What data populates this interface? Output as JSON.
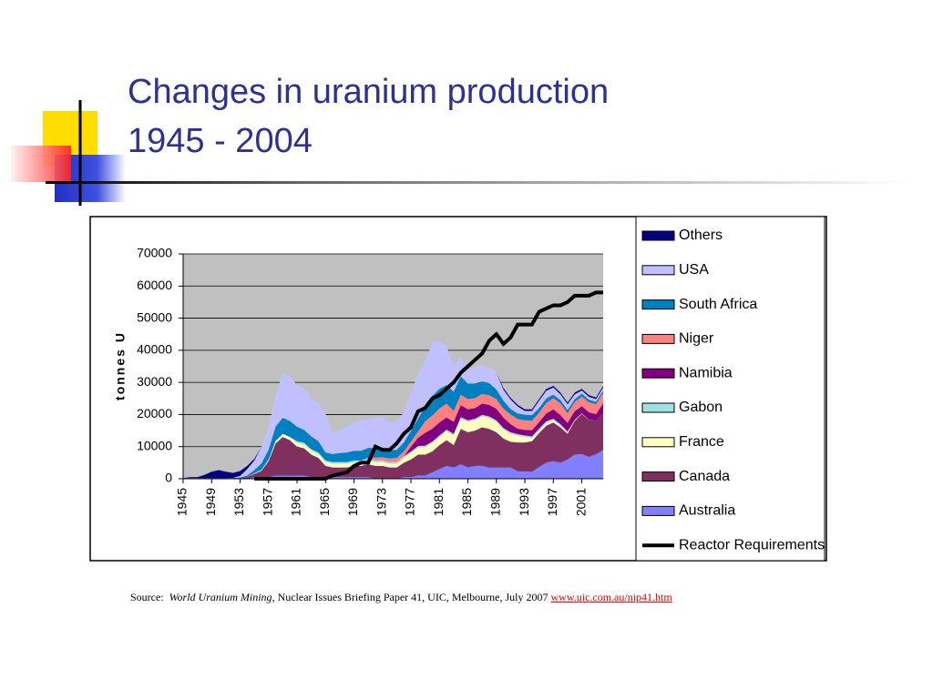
{
  "title": "Changes in uranium production",
  "subtitle": "1945 - 2004",
  "source": {
    "prefix": "Source:",
    "title": "World Uranium Mining",
    "text": ", Nuclear Issues Briefing Paper 41, UIC, Melbourne, July 2007",
    "link": "www.uic.com.au/nip41.htm"
  },
  "chart_data": {
    "type": "stacked_area",
    "y_label": "tonnes U",
    "ylim": [
      0,
      70000
    ],
    "yticks": [
      0,
      10000,
      20000,
      30000,
      40000,
      50000,
      60000,
      70000
    ],
    "grid": true,
    "categories": [
      "1945",
      null,
      null,
      null,
      "1949",
      null,
      null,
      null,
      "1953",
      null,
      null,
      null,
      "1957",
      null,
      null,
      null,
      "1961",
      null,
      null,
      null,
      "1965",
      null,
      null,
      null,
      "1969",
      null,
      null,
      null,
      "1973",
      null,
      null,
      null,
      "1977",
      null,
      null,
      null,
      "1981",
      null,
      null,
      null,
      "1985",
      null,
      null,
      null,
      "1989",
      null,
      null,
      null,
      "1993",
      null,
      null,
      null,
      "1997",
      null,
      null,
      null,
      "2001",
      null,
      null,
      null
    ],
    "series": [
      {
        "name": "Australia",
        "color": "#8080ff",
        "values": [
          0,
          0,
          0,
          0,
          0,
          0,
          0,
          0,
          0,
          0,
          500,
          500,
          500,
          1000,
          1000,
          1000,
          1000,
          1000,
          500,
          500,
          500,
          500,
          500,
          500,
          500,
          500,
          500,
          0,
          0,
          0,
          0,
          500,
          500,
          1000,
          1000,
          2000,
          3000,
          4000,
          3500,
          4500,
          3500,
          4000,
          4000,
          3500,
          3500,
          3500,
          3500,
          2300,
          2300,
          2200,
          3700,
          5000,
          5500,
          5000,
          6000,
          7500,
          7700,
          6800,
          7600,
          9000
        ]
      },
      {
        "name": "Canada",
        "color": "#803060",
        "values": [
          200,
          200,
          200,
          200,
          200,
          200,
          200,
          200,
          200,
          500,
          1000,
          2000,
          5000,
          10000,
          12000,
          11000,
          9000,
          8500,
          7000,
          6000,
          3500,
          3000,
          3000,
          3000,
          3500,
          3500,
          4000,
          4000,
          4000,
          3500,
          3500,
          4500,
          5500,
          6500,
          6500,
          6500,
          7500,
          8000,
          7000,
          11000,
          11000,
          11000,
          12000,
          12000,
          11000,
          9000,
          8000,
          9000,
          9000,
          9500,
          10500,
          11500,
          12000,
          11000,
          8000,
          10500,
          12500,
          11500,
          10500,
          11500
        ]
      },
      {
        "name": "France",
        "color": "#ffffc0",
        "values": [
          0,
          0,
          0,
          0,
          0,
          0,
          0,
          0,
          0,
          0,
          200,
          300,
          500,
          800,
          1000,
          1000,
          1200,
          1200,
          1200,
          1200,
          1200,
          1200,
          1200,
          1200,
          1200,
          1200,
          1200,
          1200,
          1200,
          1200,
          1200,
          1500,
          2000,
          2200,
          2300,
          2600,
          2500,
          2800,
          3000,
          3200,
          3200,
          3200,
          3400,
          3400,
          3200,
          2800,
          2500,
          2100,
          1700,
          1000,
          900,
          900,
          700,
          500,
          400,
          300,
          200,
          100,
          0,
          0
        ]
      },
      {
        "name": "Gabon",
        "color": "#a0e0e0",
        "values": [
          0,
          0,
          0,
          0,
          0,
          0,
          0,
          0,
          0,
          0,
          0,
          0,
          0,
          0,
          0,
          0,
          500,
          500,
          500,
          500,
          500,
          500,
          500,
          500,
          500,
          500,
          500,
          500,
          500,
          500,
          500,
          500,
          500,
          500,
          500,
          500,
          500,
          500,
          500,
          500,
          500,
          500,
          500,
          500,
          500,
          500,
          500,
          500,
          500,
          500,
          500,
          500,
          500,
          500,
          300,
          0,
          0,
          0,
          0,
          0
        ]
      },
      {
        "name": "Namibia",
        "color": "#800080",
        "values": [
          0,
          0,
          0,
          0,
          0,
          0,
          0,
          0,
          0,
          0,
          0,
          0,
          0,
          0,
          0,
          0,
          0,
          0,
          0,
          0,
          0,
          0,
          0,
          0,
          0,
          0,
          0,
          0,
          0,
          0,
          0,
          0,
          1500,
          2500,
          4000,
          4000,
          4000,
          3800,
          3700,
          3700,
          3400,
          3300,
          3500,
          3600,
          3600,
          3200,
          2500,
          1700,
          1700,
          1900,
          2000,
          2400,
          2900,
          2800,
          2700,
          2700,
          2200,
          2300,
          2000,
          3000
        ]
      },
      {
        "name": "Niger",
        "color": "#ff8080",
        "values": [
          0,
          0,
          0,
          0,
          0,
          0,
          0,
          0,
          0,
          0,
          0,
          0,
          0,
          0,
          0,
          0,
          0,
          0,
          0,
          0,
          0,
          0,
          0,
          0,
          0,
          0,
          400,
          900,
          1000,
          1100,
          1300,
          1500,
          1600,
          2000,
          3600,
          4100,
          4400,
          4300,
          3400,
          3300,
          3200,
          3100,
          3000,
          3000,
          3000,
          2800,
          3000,
          3000,
          3000,
          3000,
          3000,
          3300,
          3500,
          3700,
          3000,
          2900,
          3000,
          3100,
          3100,
          3300
        ]
      },
      {
        "name": "South Africa",
        "color": "#0080c0",
        "values": [
          0,
          0,
          0,
          0,
          0,
          0,
          0,
          100,
          200,
          500,
          1000,
          2000,
          3000,
          4500,
          5000,
          5000,
          4500,
          4000,
          4000,
          3500,
          2500,
          2500,
          2800,
          3000,
          3000,
          3000,
          3000,
          3000,
          3000,
          2700,
          2500,
          2800,
          3300,
          4000,
          4800,
          6100,
          6100,
          5800,
          6000,
          5700,
          4800,
          4600,
          3900,
          3800,
          3000,
          2500,
          1700,
          1700,
          1700,
          1700,
          1400,
          1400,
          1100,
          1000,
          1000,
          900,
          900,
          800,
          800,
          700
        ]
      },
      {
        "name": "USA",
        "color": "#c0c0ff",
        "values": [
          0,
          0,
          0,
          0,
          0,
          0,
          0,
          0,
          500,
          2000,
          3000,
          5000,
          7000,
          10000,
          14000,
          14000,
          13000,
          13000,
          12000,
          12000,
          12000,
          7000,
          7000,
          8000,
          9000,
          9500,
          9000,
          9500,
          9500,
          8500,
          8500,
          9500,
          12000,
          14000,
          14000,
          16500,
          15000,
          12000,
          8000,
          6000,
          4300,
          5000,
          5000,
          5000,
          5300,
          3400,
          3000,
          2200,
          1200,
          1300,
          2300,
          2400,
          2200,
          1800,
          1800,
          1500,
          1000,
          900,
          800,
          900
        ]
      },
      {
        "name": "Others",
        "color": "#000080",
        "values": [
          0,
          300,
          300,
          1000,
          2000,
          2500,
          2000,
          1500,
          1500,
          1000,
          500,
          0,
          0,
          0,
          0,
          0,
          0,
          0,
          0,
          0,
          0,
          0,
          0,
          0,
          0,
          0,
          0,
          0,
          0,
          0,
          0,
          0,
          0,
          0,
          0,
          0,
          0,
          0,
          0,
          0,
          0,
          0,
          0,
          0,
          0,
          500,
          500,
          500,
          500,
          500,
          500,
          500,
          500,
          500,
          500,
          500,
          500,
          500,
          500,
          500
        ]
      },
      {
        "name": "Reactor Requirements",
        "color": "#000000",
        "type": "line",
        "values": [
          null,
          null,
          null,
          null,
          null,
          null,
          null,
          null,
          null,
          null,
          0,
          0,
          0,
          0,
          0,
          0,
          0,
          0,
          0,
          0,
          0,
          1000,
          1500,
          2000,
          4000,
          5000,
          5000,
          10000,
          9000,
          9000,
          11000,
          14000,
          16000,
          21000,
          22000,
          25000,
          26000,
          28000,
          30000,
          33000,
          35000,
          37000,
          39000,
          43000,
          45000,
          42000,
          44000,
          48000,
          48000,
          48000,
          52000,
          53000,
          54000,
          54000,
          55000,
          57000,
          57000,
          57000,
          58000,
          58000
        ]
      }
    ]
  }
}
